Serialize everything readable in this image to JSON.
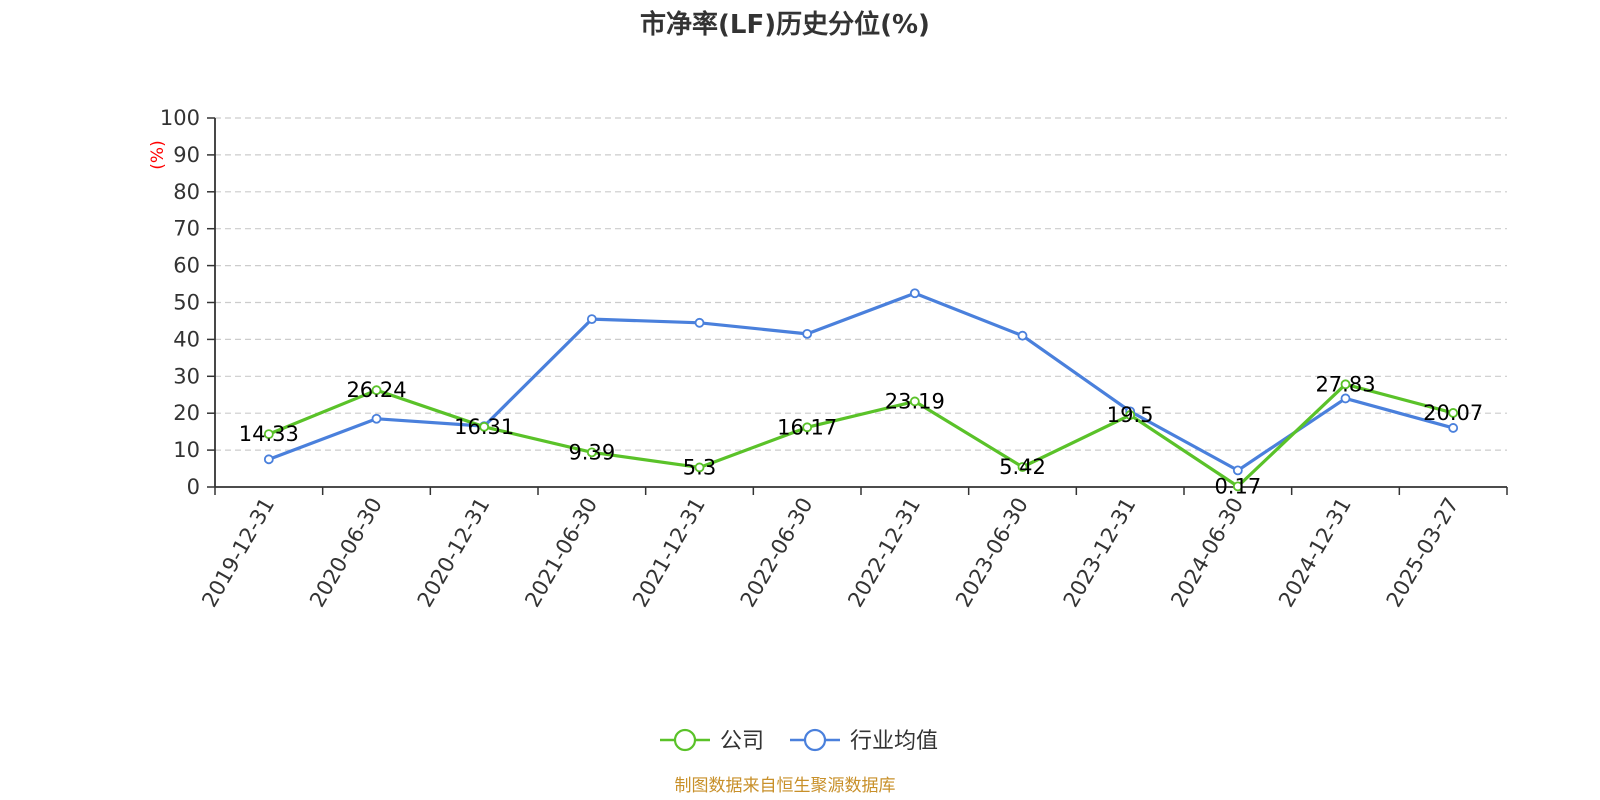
{
  "chart_data": {
    "type": "line",
    "title": "市净率(LF)历史分位(%)",
    "ylabel": "(%)",
    "ylim": [
      0,
      100
    ],
    "yticks": [
      0,
      10,
      20,
      30,
      40,
      50,
      60,
      70,
      80,
      90,
      100
    ],
    "categories": [
      "2019-12-31",
      "2020-06-30",
      "2020-12-31",
      "2021-06-30",
      "2021-12-31",
      "2022-06-30",
      "2022-12-31",
      "2023-06-30",
      "2023-12-31",
      "2024-06-30",
      "2024-12-31",
      "2025-03-27"
    ],
    "grid": "horizontal dashed",
    "legend_position": "bottom",
    "series": [
      {
        "name": "公司",
        "color": "#5ac229",
        "values": [
          14.33,
          26.24,
          16.31,
          9.39,
          5.3,
          16.17,
          23.19,
          5.42,
          19.5,
          0.17,
          27.83,
          20.07
        ],
        "labels": [
          "14.33",
          "26.24",
          "16.31",
          "9.39",
          "5.3",
          "16.17",
          "23.19",
          "5.42",
          "19.5",
          "0.17",
          "27.83",
          "20.07"
        ]
      },
      {
        "name": "行业均值",
        "color": "#4a80dc",
        "values": [
          7.5,
          18.5,
          16.5,
          45.5,
          44.5,
          41.5,
          52.5,
          41.0,
          20.5,
          4.5,
          24.0,
          16.0
        ]
      }
    ]
  },
  "source_text": "制图数据来自恒生聚源数据库"
}
